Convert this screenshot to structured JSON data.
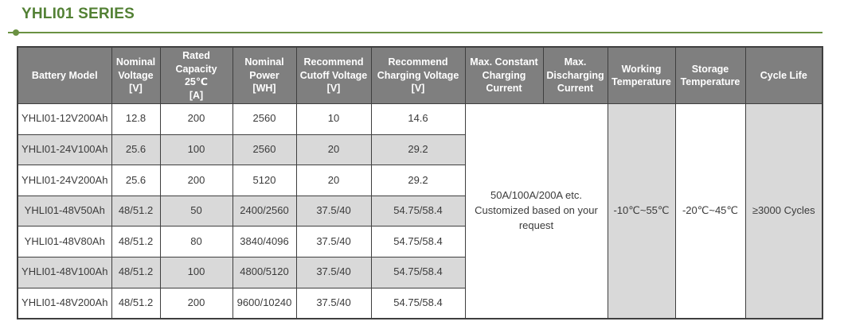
{
  "page": {
    "title": "YHLI01 SERIES"
  },
  "theme": {
    "title_green": "#538135",
    "divider_green": "#6a9142",
    "header_bg": "#7f7f7f",
    "header_text": "#ffffff",
    "stripe_bg": "#d9d9d9",
    "border_color": "#3f3f3f"
  },
  "table": {
    "columns": [
      {
        "id": "battery-model",
        "label": "Battery Model"
      },
      {
        "id": "nominal-voltage",
        "label": "Nominal\nVoltage\n[V]"
      },
      {
        "id": "rated-capacity",
        "label": "Rated\nCapacity 25℃\n[A]"
      },
      {
        "id": "nominal-power",
        "label": "Nominal\nPower\n[WH]"
      },
      {
        "id": "recommend-cutoff-voltage",
        "label": "Recommend\nCutoff Voltage\n[V]"
      },
      {
        "id": "recommend-charging-voltage",
        "label": "Recommend\nCharging Voltage\n[V]"
      },
      {
        "id": "max-constant-charging-current",
        "label": "Max. Constant\nCharging\nCurrent"
      },
      {
        "id": "max-discharging-current",
        "label": "Max.\nDischarging\nCurrent"
      },
      {
        "id": "working-temperature",
        "label": "Working\nTemperature"
      },
      {
        "id": "storage-temperature",
        "label": "Storage\nTemperature"
      },
      {
        "id": "cycle-life",
        "label": "Cycle Life"
      }
    ],
    "rows": [
      {
        "cells": [
          "YHLI01-12V200Ah",
          "12.8",
          "200",
          "2560",
          "10",
          "14.6"
        ]
      },
      {
        "cells": [
          "YHLI01-24V100Ah",
          "25.6",
          "100",
          "2560",
          "20",
          "29.2"
        ]
      },
      {
        "cells": [
          "YHLI01-24V200Ah",
          "25.6",
          "200",
          "5120",
          "20",
          "29.2"
        ]
      },
      {
        "cells": [
          "YHLI01-48V50Ah",
          "48/51.2",
          "50",
          "2400/2560",
          "37.5/40",
          "54.75/58.4"
        ]
      },
      {
        "cells": [
          "YHLI01-48V80Ah",
          "48/51.2",
          "80",
          "3840/4096",
          "37.5/40",
          "54.75/58.4"
        ]
      },
      {
        "cells": [
          "YHLI01-48V100Ah",
          "48/51.2",
          "100",
          "4800/5120",
          "37.5/40",
          "54.75/58.4"
        ]
      },
      {
        "cells": [
          "YHLI01-48V200Ah",
          "48/51.2",
          "200",
          "9600/10240",
          "37.5/40",
          "54.75/58.4"
        ]
      }
    ],
    "merged": [
      {
        "name": "max-current-note-cell",
        "text": "50A/100A/200A etc.\nCustomized based on your\nrequest",
        "colspan": 2,
        "shaded": false
      },
      {
        "name": "working-temperature-cell",
        "text": "-10℃~55℃",
        "colspan": 1,
        "shaded": true
      },
      {
        "name": "storage-temperature-cell",
        "text": "-20℃~45℃",
        "colspan": 1,
        "shaded": false
      },
      {
        "name": "cycle-life-cell",
        "text": "≥3000 Cycles",
        "colspan": 1,
        "shaded": true
      }
    ]
  }
}
